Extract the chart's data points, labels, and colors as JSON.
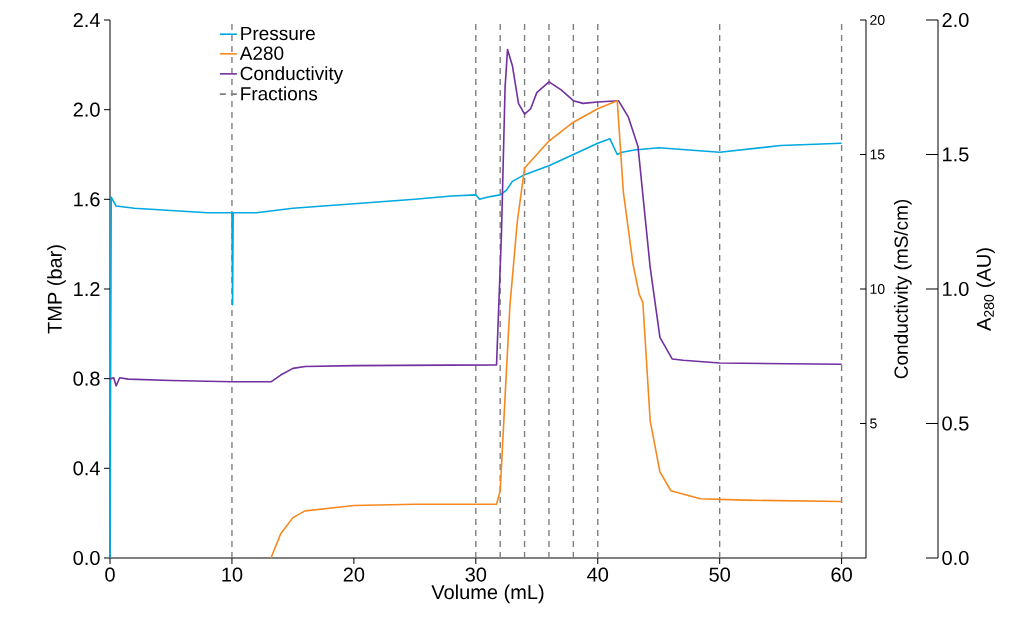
{
  "chart_data": {
    "type": "line",
    "xlabel": "Volume (mL)",
    "ylabel": "TMP (bar)",
    "y2label": "Conductivity (mS/cm)",
    "y3label": "A$_{280}$ (AU)",
    "xlim": [
      0,
      62
    ],
    "xticks": [
      0,
      10,
      20,
      30,
      40,
      50,
      60
    ],
    "ylim": [
      0,
      2.4
    ],
    "yticks": [
      {
        "value": 0,
        "label": "0.0"
      },
      {
        "value": 0.4,
        "label": "0.4"
      },
      {
        "value": 0.8,
        "label": "0.8"
      },
      {
        "value": 1.2,
        "label": "1.2"
      },
      {
        "value": 1.6,
        "label": "1.6"
      },
      {
        "value": 2.0,
        "label": "2.0"
      },
      {
        "value": 2.4,
        "label": "2.4"
      }
    ],
    "y2lim": [
      0,
      20
    ],
    "y2ticks": [
      5,
      10,
      15,
      20
    ],
    "y3lim": [
      0,
      2.0
    ],
    "y3ticks": [
      {
        "value": 0,
        "label": "0.0"
      },
      {
        "value": 0.5,
        "label": "0.5"
      },
      {
        "value": 1.0,
        "label": "1.0"
      },
      {
        "value": 1.5,
        "label": "1.5"
      },
      {
        "value": 2.0,
        "label": "2.0"
      }
    ],
    "legend": "top left",
    "series": [
      {
        "name": "Pressure",
        "color": "#00a8e1",
        "x": [
          0,
          0.1,
          0.5,
          2,
          5,
          8,
          10,
          10.05,
          10.1,
          12,
          15,
          20,
          25,
          28,
          30,
          30.3,
          31,
          32,
          32.5,
          33,
          34,
          36,
          38,
          40,
          41,
          41.6,
          42,
          43,
          45,
          50,
          55,
          60
        ],
        "values": [
          0,
          1.61,
          1.57,
          1.56,
          1.55,
          1.54,
          1.54,
          1.13,
          1.54,
          1.54,
          1.56,
          1.58,
          1.6,
          1.615,
          1.62,
          1.6,
          1.61,
          1.62,
          1.64,
          1.68,
          1.71,
          1.75,
          1.8,
          1.85,
          1.87,
          1.8,
          1.81,
          1.82,
          1.83,
          1.81,
          1.84,
          1.85
        ]
      },
      {
        "name": "A280",
        "color": "#f5891f",
        "axis": "y3",
        "x": [
          13.2,
          14,
          15,
          16,
          20,
          25,
          31.7,
          32,
          32.4,
          32.8,
          33.4,
          34,
          36,
          38,
          40,
          41.6,
          42.1,
          42.9,
          43.4,
          43.7,
          44.3,
          45.1,
          46,
          48.4,
          52,
          60
        ],
        "values": [
          0,
          0.09,
          0.15,
          0.175,
          0.195,
          0.2,
          0.2,
          0.25,
          0.6,
          0.94,
          1.25,
          1.45,
          1.55,
          1.62,
          1.67,
          1.7,
          1.36,
          1.09,
          0.98,
          0.95,
          0.51,
          0.32,
          0.25,
          0.22,
          0.215,
          0.21
        ]
      },
      {
        "name": "Conductivity",
        "color": "#7030a0",
        "axis": "y2",
        "x": [
          0,
          0.3,
          0.5,
          0.8,
          1.5,
          5,
          10,
          13.2,
          14,
          15,
          16,
          20,
          31.7,
          32.1,
          32.4,
          32.6,
          33,
          33.5,
          34,
          34.5,
          35,
          36,
          37,
          38,
          38.8,
          40,
          41.7,
          42.5,
          43.3,
          44.3,
          45.1,
          46.1,
          47,
          50,
          60
        ],
        "values": [
          6.65,
          6.7,
          6.4,
          6.7,
          6.65,
          6.6,
          6.55,
          6.55,
          6.8,
          7.05,
          7.12,
          7.15,
          7.18,
          12,
          17.5,
          18.9,
          18.3,
          16.9,
          16.5,
          16.7,
          17.3,
          17.7,
          17.4,
          17.0,
          16.9,
          16.95,
          17.0,
          16.4,
          15.3,
          10.8,
          8.2,
          7.4,
          7.35,
          7.25,
          7.2
        ]
      }
    ],
    "ref_lines": [
      {
        "axis": "x",
        "value": 10,
        "label": "Fractions",
        "color": "#7f7f7f",
        "line_style": "dashed"
      },
      {
        "axis": "x",
        "value": 30,
        "color": "#7f7f7f",
        "line_style": "dashed"
      },
      {
        "axis": "x",
        "value": 32,
        "color": "#7f7f7f",
        "line_style": "dashed"
      },
      {
        "axis": "x",
        "value": 34,
        "color": "#7f7f7f",
        "line_style": "dashed"
      },
      {
        "axis": "x",
        "value": 36,
        "color": "#7f7f7f",
        "line_style": "dashed"
      },
      {
        "axis": "x",
        "value": 38,
        "color": "#7f7f7f",
        "line_style": "dashed"
      },
      {
        "axis": "x",
        "value": 40,
        "color": "#7f7f7f",
        "line_style": "dashed"
      },
      {
        "axis": "x",
        "value": 50,
        "color": "#7f7f7f",
        "line_style": "dashed"
      },
      {
        "axis": "x",
        "value": 60,
        "color": "#7f7f7f",
        "line_style": "dashed"
      }
    ]
  }
}
